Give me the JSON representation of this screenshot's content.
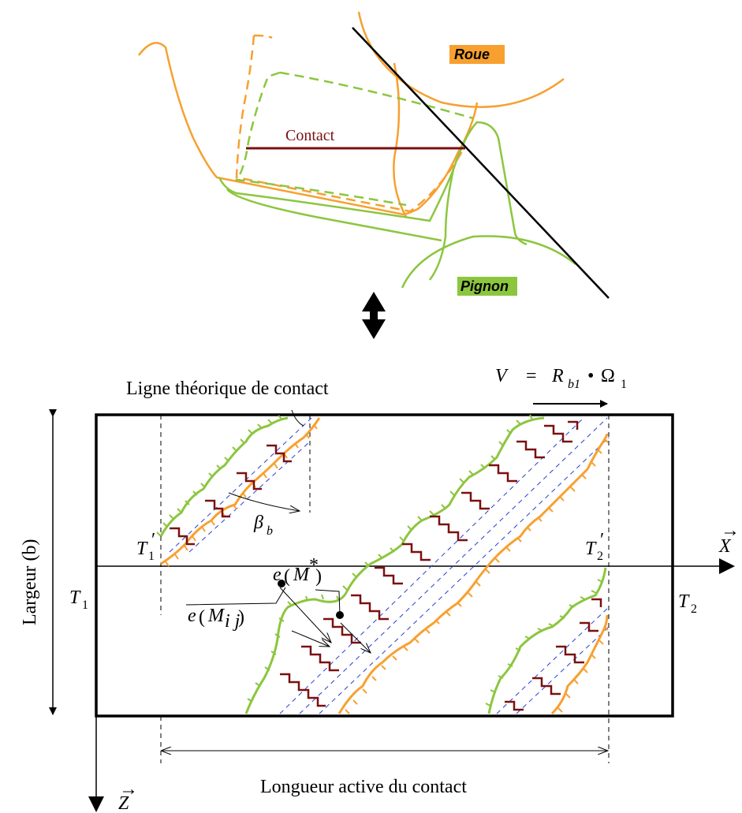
{
  "colors": {
    "wheel": "#f7a030",
    "pinion": "#8cc63f",
    "contact": "#7a1010",
    "guide": "#2b3fcf",
    "ink": "#000000"
  },
  "top": {
    "wheel_label": "Roue",
    "pinion_label": "Pignon",
    "contact_label": "Contact"
  },
  "bottom": {
    "line_label": "Ligne théorique de contact",
    "width_label": "Largeur (b)",
    "length_label": "Longueur active du contact",
    "velocity": {
      "V": "V",
      "eq": "=",
      "R": "R",
      "R_sub": "b1",
      "dot": "•",
      "omega": "Ω",
      "omega_sub": "1"
    },
    "beta": {
      "sym": "β",
      "sub": "b"
    },
    "T1": {
      "sym": "T",
      "sub": "1"
    },
    "T2": {
      "sym": "T",
      "sub": "2"
    },
    "T1p": {
      "sym": "T",
      "sub": "1",
      "prime": "′"
    },
    "T2p": {
      "sym": "T",
      "sub": "2",
      "prime": "′"
    },
    "X": "X",
    "Z": "Z",
    "e_star": {
      "e": "e",
      "M": "M",
      "sup": "*"
    },
    "e_ij": {
      "e": "e",
      "M": "M",
      "sub": "i j"
    }
  }
}
